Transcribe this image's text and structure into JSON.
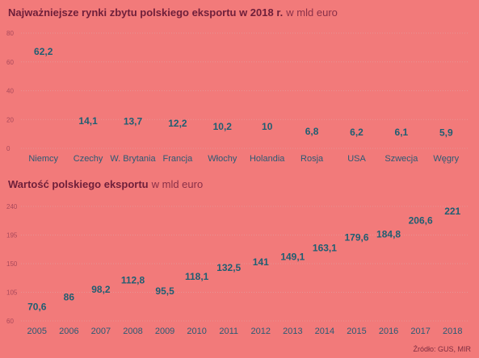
{
  "charts": {
    "top": {
      "title": "Najważniejsze rynki zbytu polskiego eksportu w 2018 r.",
      "subtitle": "w mld euro"
    },
    "bottom": {
      "title": "Wartość polskiego eksportu",
      "subtitle": "w mld euro"
    }
  },
  "source": "Źródło: GUS, MIR",
  "colors": {
    "background": "#f27a7a",
    "bar": "#f59090",
    "highlight": "#9a2a9a",
    "value_label": "#1f5e72",
    "category_label": "#2b5a74",
    "tick_label": "#a8485a",
    "grid": "#e79393"
  },
  "chart_data": [
    {
      "type": "bar",
      "title": "Najważniejsze rynki zbytu polskiego eksportu w 2018 r.",
      "subtitle": "w mld euro",
      "categories": [
        "Niemcy",
        "Czechy",
        "W. Brytania",
        "Francja",
        "Włochy",
        "Holandia",
        "Rosja",
        "USA",
        "Szwecja",
        "Węgry"
      ],
      "values": [
        62.2,
        14.1,
        13.7,
        12.2,
        10.2,
        10,
        6.8,
        6.2,
        6.1,
        5.9
      ],
      "value_labels": [
        "62,2",
        "14,1",
        "13,7",
        "12,2",
        "10,2",
        "10",
        "6,8",
        "6,2",
        "6,1",
        "5,9"
      ],
      "highlight_index": 0,
      "ylim": [
        0,
        80
      ],
      "yticks": [
        0,
        20,
        40,
        60,
        80
      ],
      "grid": true
    },
    {
      "type": "bar",
      "title": "Wartość polskiego eksportu",
      "subtitle": "w mld euro",
      "categories": [
        "2005",
        "2006",
        "2007",
        "2008",
        "2009",
        "2010",
        "2011",
        "2012",
        "2013",
        "2014",
        "2015",
        "2016",
        "2017",
        "2018"
      ],
      "values": [
        70.6,
        86,
        98.2,
        112.8,
        95.5,
        118.1,
        132.5,
        141,
        149.1,
        163.1,
        179.6,
        184.8,
        206.6,
        221
      ],
      "value_labels": [
        "70,6",
        "86",
        "98,2",
        "112,8",
        "95,5",
        "118,1",
        "132,5",
        "141",
        "149,1",
        "163,1",
        "179,6",
        "184,8",
        "206,6",
        "221"
      ],
      "highlight_index": 13,
      "ylim": [
        60,
        240
      ],
      "yticks": [
        60,
        105,
        150,
        195,
        240
      ],
      "grid": true
    }
  ]
}
